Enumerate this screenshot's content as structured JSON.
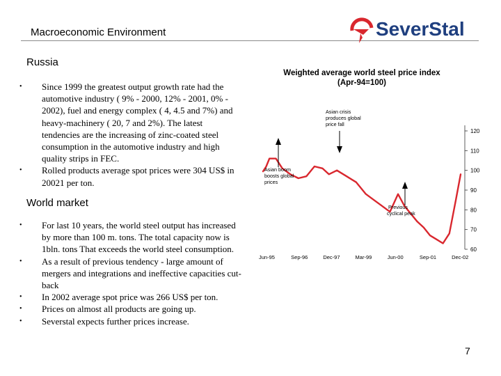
{
  "header": {
    "title": "Macroeconomic Environment",
    "logo_text": "SeverStal",
    "logo_icon": "severstal-swoosh-icon",
    "brand_color": "#1f3f7f",
    "accent_color": "#d9272e"
  },
  "russia": {
    "title": "Russia",
    "bullets": [
      "Since 1999 the greatest output growth rate had the automotive industry ( 9% - 2000, 12% - 2001, 0% - 2002), fuel and energy complex ( 4, 4.5 and 7%) and heavy-machinery ( 20, 7 and 2%). The latest tendencies are the increasing of zinc-coated steel consumption in the automotive industry and high quality strips in FEC.",
      "Rolled products average spot prices were 304 US$ in 20021 per ton."
    ]
  },
  "world": {
    "title": "World market",
    "bullets": [
      "For last 10 years, the world steel output has increased by more than 100 m. tons. The total capacity now is 1bln. tons That exceeds  the world steel consumption.",
      "As a result of previous tendency - large amount of mergers and integrations and ineffective capacities cut-back",
      "In 2002 average spot price was 266 US$ per ton.",
      "Prices on almost all products are going up.",
      "Severstal expects further prices increase."
    ]
  },
  "page_number": "7",
  "chart_data": {
    "type": "line",
    "title": "Weighted average world steel price index",
    "subtitle": "(Apr-94=100)",
    "categories": [
      "Jun-95",
      "Sep-96",
      "Dec-97",
      "Mar-99",
      "Jun-00",
      "Sep-01",
      "Dec-02"
    ],
    "ylim": [
      60,
      120
    ],
    "yticks": [
      "120",
      "110",
      "100",
      "90",
      "80",
      "70",
      "60"
    ],
    "line_color": "#d9272e",
    "annotations": [
      "Asian boom boosts global prices",
      "Asian crisis produces global price fall",
      "Previous cyclical peak"
    ],
    "series": [
      {
        "name": "Weighted average world steel price index",
        "x": [
          0,
          0.1,
          0.2,
          0.4,
          0.6,
          0.85,
          1.1,
          1.35,
          1.6,
          1.85,
          2.05,
          2.3,
          2.6,
          2.9,
          3.2,
          3.45,
          3.7,
          3.95,
          4.2,
          4.4,
          4.6,
          4.8,
          5.0,
          5.2,
          5.4,
          5.6,
          5.8,
          6.0,
          6.15
        ],
        "y": [
          99.5,
          102,
          106,
          106,
          101,
          98,
          96,
          97,
          102,
          101,
          98,
          100,
          97,
          94,
          88,
          85,
          82,
          79,
          88,
          82,
          78,
          74,
          71,
          67,
          65,
          63,
          68,
          85,
          98
        ]
      }
    ]
  }
}
